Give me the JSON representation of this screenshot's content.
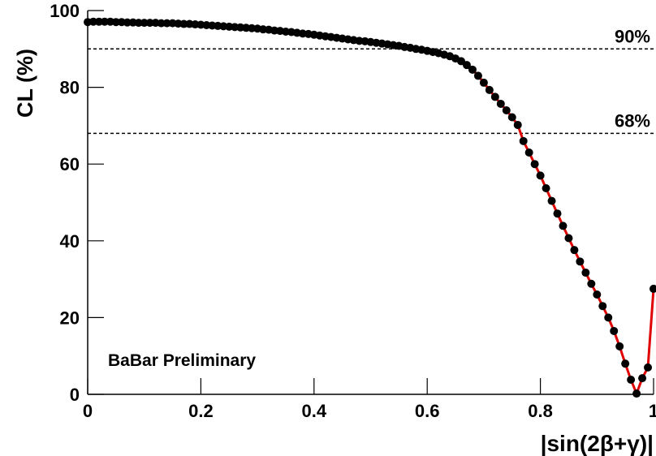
{
  "chart_data": {
    "type": "line",
    "xlabel": "|sin(2β+γ)|",
    "ylabel": "CL (%)",
    "annotation": "BaBar Preliminary",
    "x": [
      0,
      0.01,
      0.02,
      0.03,
      0.04,
      0.05,
      0.06,
      0.07,
      0.08,
      0.09,
      0.1,
      0.11,
      0.12,
      0.13,
      0.14,
      0.15,
      0.16,
      0.17,
      0.18,
      0.19,
      0.2,
      0.21,
      0.22,
      0.23,
      0.24,
      0.25,
      0.26,
      0.27,
      0.28,
      0.29,
      0.3,
      0.31,
      0.32,
      0.33,
      0.34,
      0.35,
      0.36,
      0.37,
      0.38,
      0.39,
      0.4,
      0.41,
      0.42,
      0.43,
      0.44,
      0.45,
      0.46,
      0.47,
      0.48,
      0.49,
      0.5,
      0.51,
      0.52,
      0.53,
      0.54,
      0.55,
      0.56,
      0.57,
      0.58,
      0.59,
      0.6,
      0.61,
      0.62,
      0.63,
      0.64,
      0.65,
      0.66,
      0.67,
      0.68,
      0.69,
      0.7,
      0.71,
      0.72,
      0.73,
      0.74,
      0.75,
      0.76,
      0.77,
      0.78,
      0.79,
      0.8,
      0.81,
      0.82,
      0.83,
      0.84,
      0.85,
      0.86,
      0.87,
      0.88,
      0.89,
      0.9,
      0.91,
      0.92,
      0.93,
      0.94,
      0.95,
      0.96,
      0.97,
      0.98,
      0.99,
      1
    ],
    "series": [
      {
        "color": "#000000",
        "line_color": "#e00000",
        "values": [
          97.0,
          97.1,
          97.1,
          97.1,
          97.1,
          97.0,
          97.0,
          96.9,
          96.9,
          96.8,
          96.8,
          96.8,
          96.8,
          96.7,
          96.7,
          96.7,
          96.6,
          96.5,
          96.5,
          96.4,
          96.3,
          96.2,
          96.1,
          96.0,
          95.9,
          95.8,
          95.7,
          95.6,
          95.5,
          95.4,
          95.3,
          95.1,
          95.0,
          94.8,
          94.7,
          94.5,
          94.4,
          94.2,
          94.0,
          93.9,
          93.7,
          93.5,
          93.3,
          93.1,
          92.9,
          92.7,
          92.5,
          92.3,
          92.1,
          92.0,
          91.8,
          91.6,
          91.4,
          91.2,
          91.0,
          90.8,
          90.5,
          90.3,
          90.0,
          89.8,
          89.5,
          89.2,
          88.9,
          88.5,
          88.1,
          87.5,
          86.8,
          85.8,
          84.6,
          83.0,
          81.2,
          79.3,
          77.5,
          75.7,
          74.0,
          72.2,
          70.2,
          66.0,
          63.0,
          60.0,
          57.0,
          53.7,
          50.4,
          47.1,
          43.9,
          40.7,
          37.6,
          34.6,
          31.7,
          28.8,
          26.0,
          23.0,
          20.0,
          16.5,
          12.5,
          8.0,
          3.8,
          0.2,
          4.2,
          7.0,
          27.5
        ]
      }
    ],
    "reference_lines": [
      {
        "value": 90,
        "label": "90%"
      },
      {
        "value": 68,
        "label": "68%"
      }
    ],
    "xlim": [
      0,
      1
    ],
    "ylim": [
      0,
      100
    ],
    "xticks": [
      0,
      0.2,
      0.4,
      0.6,
      0.8,
      1
    ],
    "yticks": [
      0,
      20,
      40,
      60,
      80,
      100
    ]
  }
}
